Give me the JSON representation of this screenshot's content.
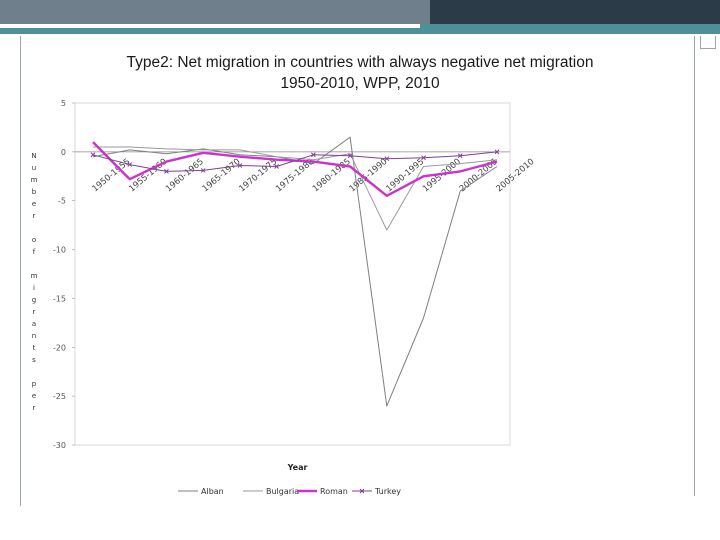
{
  "chart_data": {
    "type": "line",
    "title": "Type2: Net migration in countries with always negative net migration",
    "subtitle": "1950-2010, WPP, 2010",
    "xlabel": "Year",
    "ylabel": "Number of migrants per",
    "categories": [
      "1950-1955",
      "1955-1960",
      "1960-1965",
      "1965-1970",
      "1970-1975",
      "1975-1980",
      "1980-1985",
      "1985-1990",
      "1990-1995",
      "1995-2000",
      "2000-2005",
      "2005-2010"
    ],
    "ytick_labels": [
      "5",
      "0",
      "-5",
      "-10",
      "-15",
      "-20",
      "-25",
      "-30"
    ],
    "ylim": [
      -30,
      5
    ],
    "series": [
      {
        "name": "Albania",
        "color": "#7f7f86",
        "marker": "none",
        "values": [
          -0.5,
          0.2,
          -0.2,
          0.3,
          -0.3,
          -0.5,
          -1.2,
          1.5,
          -26,
          -17,
          -4,
          -1.5
        ]
      },
      {
        "name": "Bulgaria",
        "color": "#9a9aa0",
        "marker": "none",
        "values": [
          0.5,
          0.5,
          0.3,
          0.2,
          0.2,
          -0.5,
          -0.8,
          -0.2,
          -8,
          -1.5,
          -1.2,
          -0.8
        ]
      },
      {
        "name": "Romania",
        "color": "#cc33cc",
        "marker": "none",
        "values": [
          1.0,
          -2.8,
          -1.0,
          -0.1,
          -0.5,
          -0.8,
          -1.0,
          -1.5,
          -4.5,
          -2.5,
          -2.0,
          -1.0
        ]
      },
      {
        "name": "Turkey",
        "color": "#7f3f99",
        "marker": "x",
        "values": [
          -0.3,
          -1.3,
          -2.0,
          -1.9,
          -1.4,
          -1.5,
          -0.3,
          -0.4,
          -0.7,
          -0.6,
          -0.4,
          0.0
        ]
      }
    ],
    "legend_position": "bottom",
    "legend_entries": [
      "Alban",
      "Bulgaria",
      "Roman",
      "Turkey"
    ],
    "grid": false
  }
}
